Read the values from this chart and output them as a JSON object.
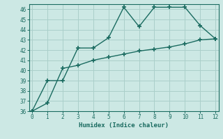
{
  "xlabel": "Humidex (Indice chaleur)",
  "background_color": "#cce8e4",
  "grid_color": "#aacfca",
  "line_color": "#1a6b60",
  "xlim": [
    -0.2,
    12.2
  ],
  "ylim": [
    36,
    46.5
  ],
  "yticks": [
    36,
    37,
    38,
    39,
    40,
    41,
    42,
    43,
    44,
    45,
    46
  ],
  "xticks": [
    0,
    1,
    2,
    3,
    4,
    5,
    6,
    7,
    8,
    9,
    10,
    11,
    12
  ],
  "line1_x": [
    0,
    1,
    2,
    3,
    4,
    5,
    6,
    7,
    8,
    9,
    10,
    11,
    12
  ],
  "line1_y": [
    36.0,
    39.0,
    39.0,
    42.2,
    42.2,
    43.2,
    46.2,
    44.3,
    46.2,
    46.2,
    46.2,
    44.4,
    43.1
  ],
  "line2_x": [
    0,
    1,
    2,
    3,
    4,
    5,
    6,
    7,
    8,
    9,
    10,
    11,
    12
  ],
  "line2_y": [
    36.0,
    36.8,
    40.2,
    40.5,
    41.0,
    41.3,
    41.6,
    41.9,
    42.1,
    42.3,
    42.6,
    43.0,
    43.1
  ]
}
